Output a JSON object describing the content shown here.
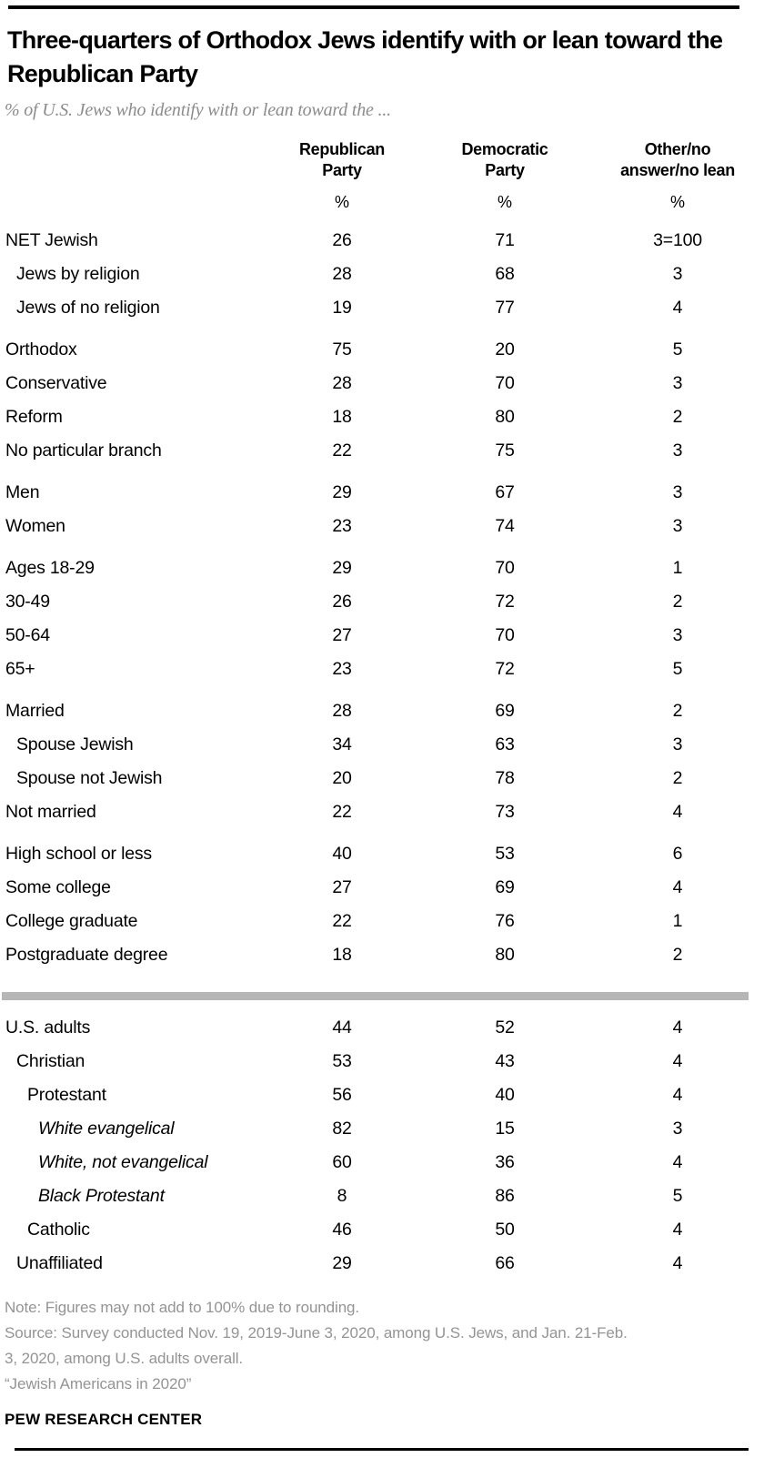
{
  "colors": {
    "rule": "#000000",
    "title_text": "#010101",
    "subtitle_text": "#8c8c8c",
    "body_text": "#000000",
    "divider_gray": "#b6b6b6",
    "footnote_text": "#949494",
    "background": "#ffffff"
  },
  "header": {
    "title": "Three-quarters of Orthodox Jews identify with or lean toward the Republican Party",
    "subtitle": "% of U.S. Jews who identify with or lean toward the ..."
  },
  "table": {
    "unit": "%",
    "columns": [
      {
        "line1": "Republican",
        "line2": "Party"
      },
      {
        "line1": "Democratic",
        "line2": "Party"
      },
      {
        "line1": "Other/no",
        "line2": "answer/no lean"
      }
    ],
    "rows": [
      {
        "label": "NET Jewish",
        "indent": 0,
        "values": [
          "26",
          "71",
          "3=100"
        ]
      },
      {
        "label": "Jews by religion",
        "indent": 1,
        "values": [
          "28",
          "68",
          "3"
        ]
      },
      {
        "label": "Jews of no religion",
        "indent": 1,
        "values": [
          "19",
          "77",
          "4"
        ]
      },
      {
        "label": "Orthodox",
        "indent": 0,
        "gap": true,
        "values": [
          "75",
          "20",
          "5"
        ]
      },
      {
        "label": "Conservative",
        "indent": 0,
        "values": [
          "28",
          "70",
          "3"
        ]
      },
      {
        "label": "Reform",
        "indent": 0,
        "values": [
          "18",
          "80",
          "2"
        ]
      },
      {
        "label": "No particular branch",
        "indent": 0,
        "values": [
          "22",
          "75",
          "3"
        ]
      },
      {
        "label": "Men",
        "indent": 0,
        "gap": true,
        "values": [
          "29",
          "67",
          "3"
        ]
      },
      {
        "label": "Women",
        "indent": 0,
        "values": [
          "23",
          "74",
          "3"
        ]
      },
      {
        "label": "Ages 18-29",
        "indent": 0,
        "gap": true,
        "values": [
          "29",
          "70",
          "1"
        ]
      },
      {
        "label": "30-49",
        "indent": 0,
        "values": [
          "26",
          "72",
          "2"
        ]
      },
      {
        "label": "50-64",
        "indent": 0,
        "values": [
          "27",
          "70",
          "3"
        ]
      },
      {
        "label": "65+",
        "indent": 0,
        "values": [
          "23",
          "72",
          "5"
        ]
      },
      {
        "label": "Married",
        "indent": 0,
        "gap": true,
        "values": [
          "28",
          "69",
          "2"
        ]
      },
      {
        "label": "Spouse Jewish",
        "indent": 1,
        "values": [
          "34",
          "63",
          "3"
        ]
      },
      {
        "label": "Spouse not Jewish",
        "indent": 1,
        "values": [
          "20",
          "78",
          "2"
        ]
      },
      {
        "label": "Not married",
        "indent": 0,
        "values": [
          "22",
          "73",
          "4"
        ]
      },
      {
        "label": "High school or less",
        "indent": 0,
        "gap": true,
        "values": [
          "40",
          "53",
          "6"
        ]
      },
      {
        "label": "Some college",
        "indent": 0,
        "values": [
          "27",
          "69",
          "4"
        ]
      },
      {
        "label": "College graduate",
        "indent": 0,
        "values": [
          "22",
          "76",
          "1"
        ]
      },
      {
        "label": "Postgraduate degree",
        "indent": 0,
        "values": [
          "18",
          "80",
          "2"
        ]
      },
      {
        "divider": true
      },
      {
        "label": "U.S. adults",
        "indent": 0,
        "values": [
          "44",
          "52",
          "4"
        ]
      },
      {
        "label": "Christian",
        "indent": 1,
        "values": [
          "53",
          "43",
          "4"
        ]
      },
      {
        "label": "Protestant",
        "indent": 2,
        "values": [
          "56",
          "40",
          "4"
        ]
      },
      {
        "label": "White evangelical",
        "indent": 3,
        "italic": true,
        "values": [
          "82",
          "15",
          "3"
        ]
      },
      {
        "label": "White, not evangelical",
        "indent": 3,
        "italic": true,
        "values": [
          "60",
          "36",
          "4"
        ]
      },
      {
        "label": "Black Protestant",
        "indent": 3,
        "italic": true,
        "values": [
          "8",
          "86",
          "5"
        ]
      },
      {
        "label": "Catholic",
        "indent": 2,
        "values": [
          "46",
          "50",
          "4"
        ]
      },
      {
        "label": "Unaffiliated",
        "indent": 1,
        "values": [
          "29",
          "66",
          "4"
        ]
      }
    ]
  },
  "footer": {
    "note": "Note: Figures may not add to 100% due to rounding.",
    "source_line1": "Source: Survey conducted Nov. 19, 2019-June 3, 2020, among U.S. Jews, and Jan. 21-Feb.",
    "source_line2": "3, 2020, among U.S. adults overall.",
    "citation": "“Jewish Americans in 2020”",
    "brand": "PEW RESEARCH CENTER"
  },
  "chart_data": {
    "type": "table",
    "title": "Three-quarters of Orthodox Jews identify with or lean toward the Republican Party",
    "subtitle": "% of U.S. Jews who identify with or lean toward the ...",
    "columns": [
      "Republican Party",
      "Democratic Party",
      "Other/no answer/no lean"
    ],
    "units": "%",
    "rows": [
      {
        "group": "NET Jewish",
        "republican": 26,
        "democratic": 71,
        "other": 3,
        "note": "3=100"
      },
      {
        "group": "Jews by religion",
        "republican": 28,
        "democratic": 68,
        "other": 3
      },
      {
        "group": "Jews of no religion",
        "republican": 19,
        "democratic": 77,
        "other": 4
      },
      {
        "group": "Orthodox",
        "republican": 75,
        "democratic": 20,
        "other": 5
      },
      {
        "group": "Conservative",
        "republican": 28,
        "democratic": 70,
        "other": 3
      },
      {
        "group": "Reform",
        "republican": 18,
        "democratic": 80,
        "other": 2
      },
      {
        "group": "No particular branch",
        "republican": 22,
        "democratic": 75,
        "other": 3
      },
      {
        "group": "Men",
        "republican": 29,
        "democratic": 67,
        "other": 3
      },
      {
        "group": "Women",
        "republican": 23,
        "democratic": 74,
        "other": 3
      },
      {
        "group": "Ages 18-29",
        "republican": 29,
        "democratic": 70,
        "other": 1
      },
      {
        "group": "30-49",
        "republican": 26,
        "democratic": 72,
        "other": 2
      },
      {
        "group": "50-64",
        "republican": 27,
        "democratic": 70,
        "other": 3
      },
      {
        "group": "65+",
        "republican": 23,
        "democratic": 72,
        "other": 5
      },
      {
        "group": "Married",
        "republican": 28,
        "democratic": 69,
        "other": 2
      },
      {
        "group": "Spouse Jewish",
        "republican": 34,
        "democratic": 63,
        "other": 3
      },
      {
        "group": "Spouse not Jewish",
        "republican": 20,
        "democratic": 78,
        "other": 2
      },
      {
        "group": "Not married",
        "republican": 22,
        "democratic": 73,
        "other": 4
      },
      {
        "group": "High school or less",
        "republican": 40,
        "democratic": 53,
        "other": 6
      },
      {
        "group": "Some college",
        "republican": 27,
        "democratic": 69,
        "other": 4
      },
      {
        "group": "College graduate",
        "republican": 22,
        "democratic": 76,
        "other": 1
      },
      {
        "group": "Postgraduate degree",
        "republican": 18,
        "democratic": 80,
        "other": 2
      },
      {
        "group": "U.S. adults",
        "republican": 44,
        "democratic": 52,
        "other": 4
      },
      {
        "group": "Christian",
        "republican": 53,
        "democratic": 43,
        "other": 4
      },
      {
        "group": "Protestant",
        "republican": 56,
        "democratic": 40,
        "other": 4
      },
      {
        "group": "White evangelical",
        "republican": 82,
        "democratic": 15,
        "other": 3
      },
      {
        "group": "White, not evangelical",
        "republican": 60,
        "democratic": 36,
        "other": 4
      },
      {
        "group": "Black Protestant",
        "republican": 8,
        "democratic": 86,
        "other": 5
      },
      {
        "group": "Catholic",
        "republican": 46,
        "democratic": 50,
        "other": 4
      },
      {
        "group": "Unaffiliated",
        "republican": 29,
        "democratic": 66,
        "other": 4
      }
    ]
  }
}
